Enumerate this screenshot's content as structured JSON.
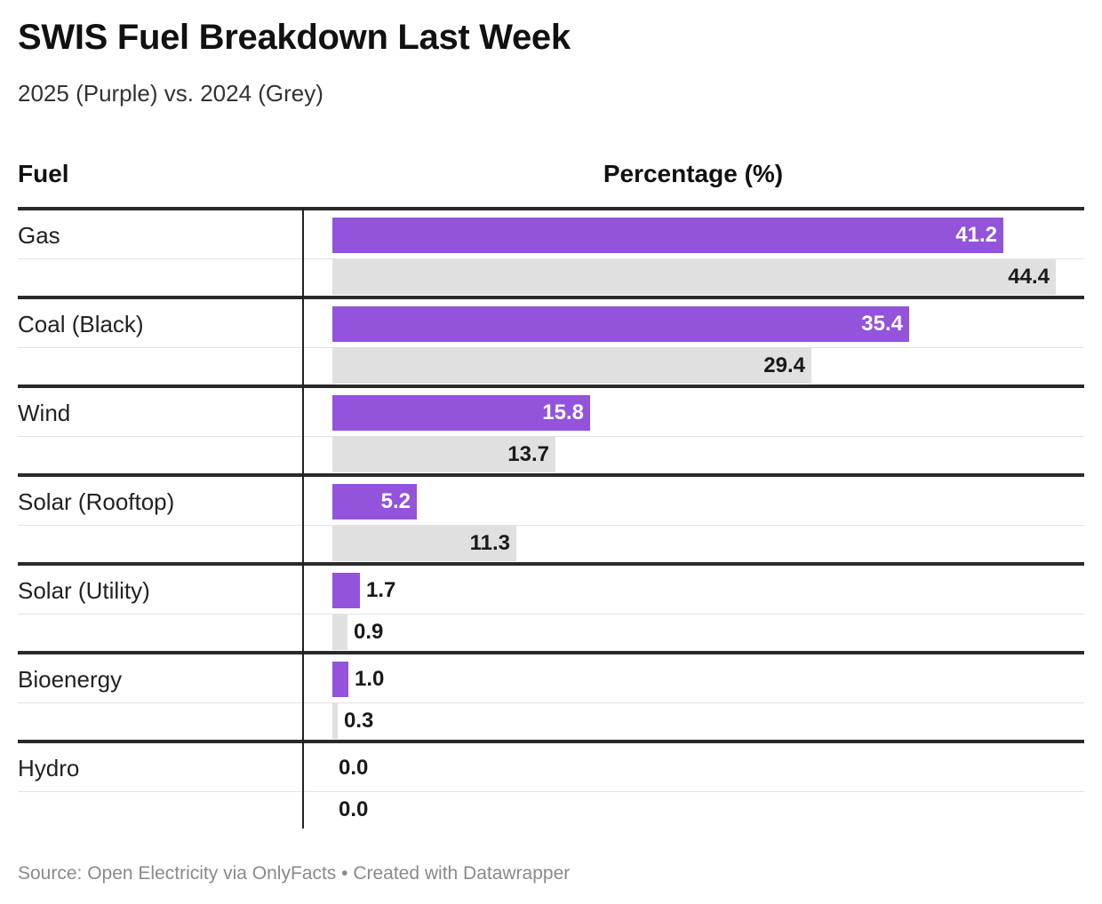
{
  "title": "SWIS Fuel Breakdown Last Week",
  "subtitle": "2025 (Purple) vs. 2024 (Grey)",
  "headers": {
    "fuel": "Fuel",
    "percentage": "Percentage (%)"
  },
  "source": "Source: Open Electricity via OnlyFacts • Created with Datawrapper",
  "colors": {
    "series_2025": "#9353db",
    "series_2024": "#e0e0e0"
  },
  "chart_data": {
    "type": "bar",
    "orientation": "horizontal",
    "categories": [
      "Gas",
      "Coal (Black)",
      "Wind",
      "Solar (Rooftop)",
      "Solar (Utility)",
      "Bioenergy",
      "Hydro"
    ],
    "series": [
      {
        "values": [
          41.2,
          35.4,
          15.8,
          5.2,
          1.7,
          1.0,
          0.0
        ],
        "color": "#9353db"
      },
      {
        "values": [
          44.4,
          29.4,
          13.7,
          11.3,
          0.9,
          0.3,
          0.0
        ],
        "color": "#e0e0e0"
      }
    ],
    "title": "SWIS Fuel Breakdown Last Week",
    "subtitle": "2025 (Purple) vs. 2024 (Grey)",
    "xlabel": "Percentage (%)",
    "ylabel": "Fuel",
    "xlim": [
      0,
      44.4
    ],
    "grid": false,
    "legend": "none"
  }
}
